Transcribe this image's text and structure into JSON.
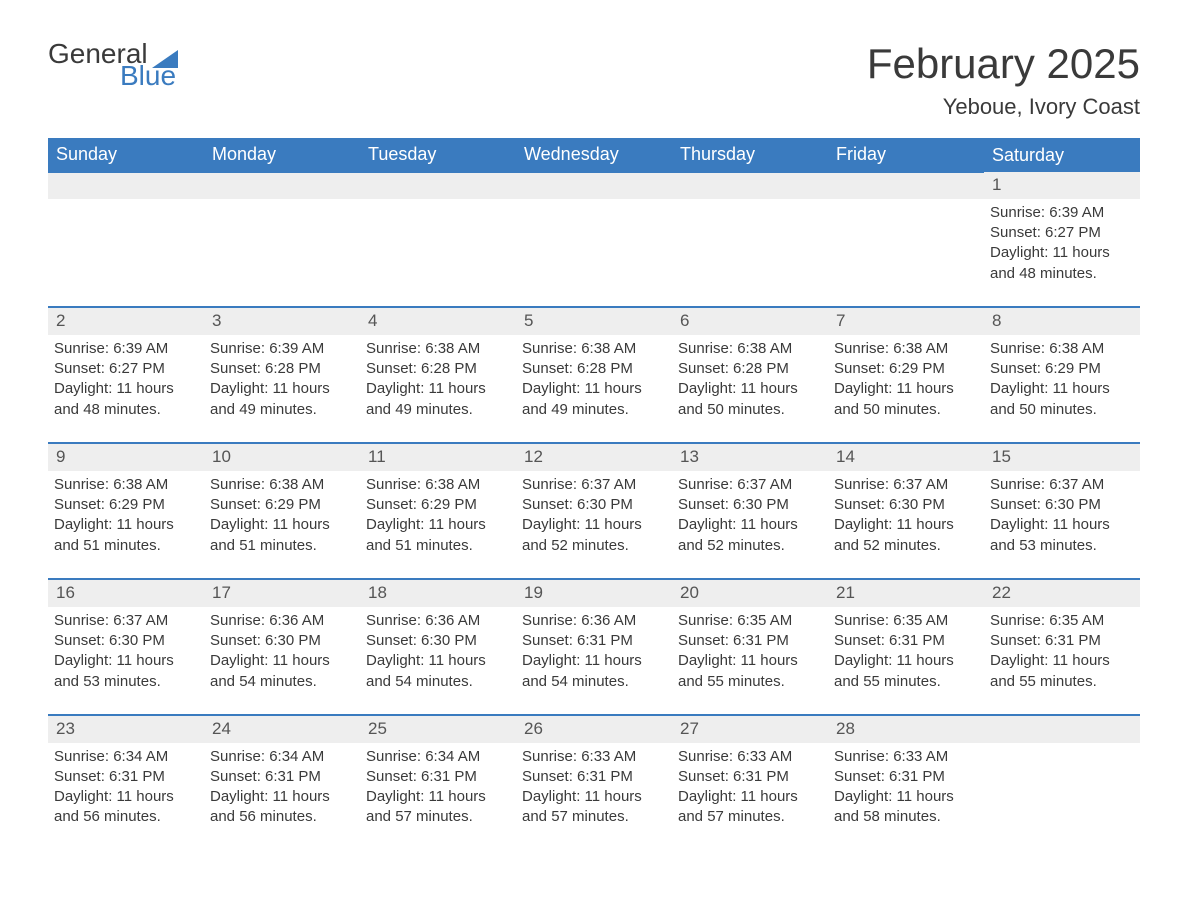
{
  "brand": {
    "text1": "General",
    "text2": "Blue",
    "triangle_color": "#3a7bbf"
  },
  "title": "February 2025",
  "location": "Yeboue, Ivory Coast",
  "colors": {
    "header_bg": "#3a7bbf",
    "header_text": "#ffffff",
    "daynum_bg": "#eeeeee",
    "row_border": "#3a7bbf",
    "text": "#3a3a3a",
    "page_bg": "#ffffff"
  },
  "typography": {
    "title_fontsize": 42,
    "location_fontsize": 22,
    "dayheader_fontsize": 18,
    "body_fontsize": 15
  },
  "layout": {
    "columns": 7,
    "weeks": 5,
    "first_day_column_index": 6
  },
  "weekdays": [
    "Sunday",
    "Monday",
    "Tuesday",
    "Wednesday",
    "Thursday",
    "Friday",
    "Saturday"
  ],
  "labels": {
    "sunrise": "Sunrise:",
    "sunset": "Sunset:",
    "daylight": "Daylight:"
  },
  "days": [
    {
      "n": 1,
      "sunrise": "6:39 AM",
      "sunset": "6:27 PM",
      "daylight": "11 hours and 48 minutes."
    },
    {
      "n": 2,
      "sunrise": "6:39 AM",
      "sunset": "6:27 PM",
      "daylight": "11 hours and 48 minutes."
    },
    {
      "n": 3,
      "sunrise": "6:39 AM",
      "sunset": "6:28 PM",
      "daylight": "11 hours and 49 minutes."
    },
    {
      "n": 4,
      "sunrise": "6:38 AM",
      "sunset": "6:28 PM",
      "daylight": "11 hours and 49 minutes."
    },
    {
      "n": 5,
      "sunrise": "6:38 AM",
      "sunset": "6:28 PM",
      "daylight": "11 hours and 49 minutes."
    },
    {
      "n": 6,
      "sunrise": "6:38 AM",
      "sunset": "6:28 PM",
      "daylight": "11 hours and 50 minutes."
    },
    {
      "n": 7,
      "sunrise": "6:38 AM",
      "sunset": "6:29 PM",
      "daylight": "11 hours and 50 minutes."
    },
    {
      "n": 8,
      "sunrise": "6:38 AM",
      "sunset": "6:29 PM",
      "daylight": "11 hours and 50 minutes."
    },
    {
      "n": 9,
      "sunrise": "6:38 AM",
      "sunset": "6:29 PM",
      "daylight": "11 hours and 51 minutes."
    },
    {
      "n": 10,
      "sunrise": "6:38 AM",
      "sunset": "6:29 PM",
      "daylight": "11 hours and 51 minutes."
    },
    {
      "n": 11,
      "sunrise": "6:38 AM",
      "sunset": "6:29 PM",
      "daylight": "11 hours and 51 minutes."
    },
    {
      "n": 12,
      "sunrise": "6:37 AM",
      "sunset": "6:30 PM",
      "daylight": "11 hours and 52 minutes."
    },
    {
      "n": 13,
      "sunrise": "6:37 AM",
      "sunset": "6:30 PM",
      "daylight": "11 hours and 52 minutes."
    },
    {
      "n": 14,
      "sunrise": "6:37 AM",
      "sunset": "6:30 PM",
      "daylight": "11 hours and 52 minutes."
    },
    {
      "n": 15,
      "sunrise": "6:37 AM",
      "sunset": "6:30 PM",
      "daylight": "11 hours and 53 minutes."
    },
    {
      "n": 16,
      "sunrise": "6:37 AM",
      "sunset": "6:30 PM",
      "daylight": "11 hours and 53 minutes."
    },
    {
      "n": 17,
      "sunrise": "6:36 AM",
      "sunset": "6:30 PM",
      "daylight": "11 hours and 54 minutes."
    },
    {
      "n": 18,
      "sunrise": "6:36 AM",
      "sunset": "6:30 PM",
      "daylight": "11 hours and 54 minutes."
    },
    {
      "n": 19,
      "sunrise": "6:36 AM",
      "sunset": "6:31 PM",
      "daylight": "11 hours and 54 minutes."
    },
    {
      "n": 20,
      "sunrise": "6:35 AM",
      "sunset": "6:31 PM",
      "daylight": "11 hours and 55 minutes."
    },
    {
      "n": 21,
      "sunrise": "6:35 AM",
      "sunset": "6:31 PM",
      "daylight": "11 hours and 55 minutes."
    },
    {
      "n": 22,
      "sunrise": "6:35 AM",
      "sunset": "6:31 PM",
      "daylight": "11 hours and 55 minutes."
    },
    {
      "n": 23,
      "sunrise": "6:34 AM",
      "sunset": "6:31 PM",
      "daylight": "11 hours and 56 minutes."
    },
    {
      "n": 24,
      "sunrise": "6:34 AM",
      "sunset": "6:31 PM",
      "daylight": "11 hours and 56 minutes."
    },
    {
      "n": 25,
      "sunrise": "6:34 AM",
      "sunset": "6:31 PM",
      "daylight": "11 hours and 57 minutes."
    },
    {
      "n": 26,
      "sunrise": "6:33 AM",
      "sunset": "6:31 PM",
      "daylight": "11 hours and 57 minutes."
    },
    {
      "n": 27,
      "sunrise": "6:33 AM",
      "sunset": "6:31 PM",
      "daylight": "11 hours and 57 minutes."
    },
    {
      "n": 28,
      "sunrise": "6:33 AM",
      "sunset": "6:31 PM",
      "daylight": "11 hours and 58 minutes."
    }
  ]
}
